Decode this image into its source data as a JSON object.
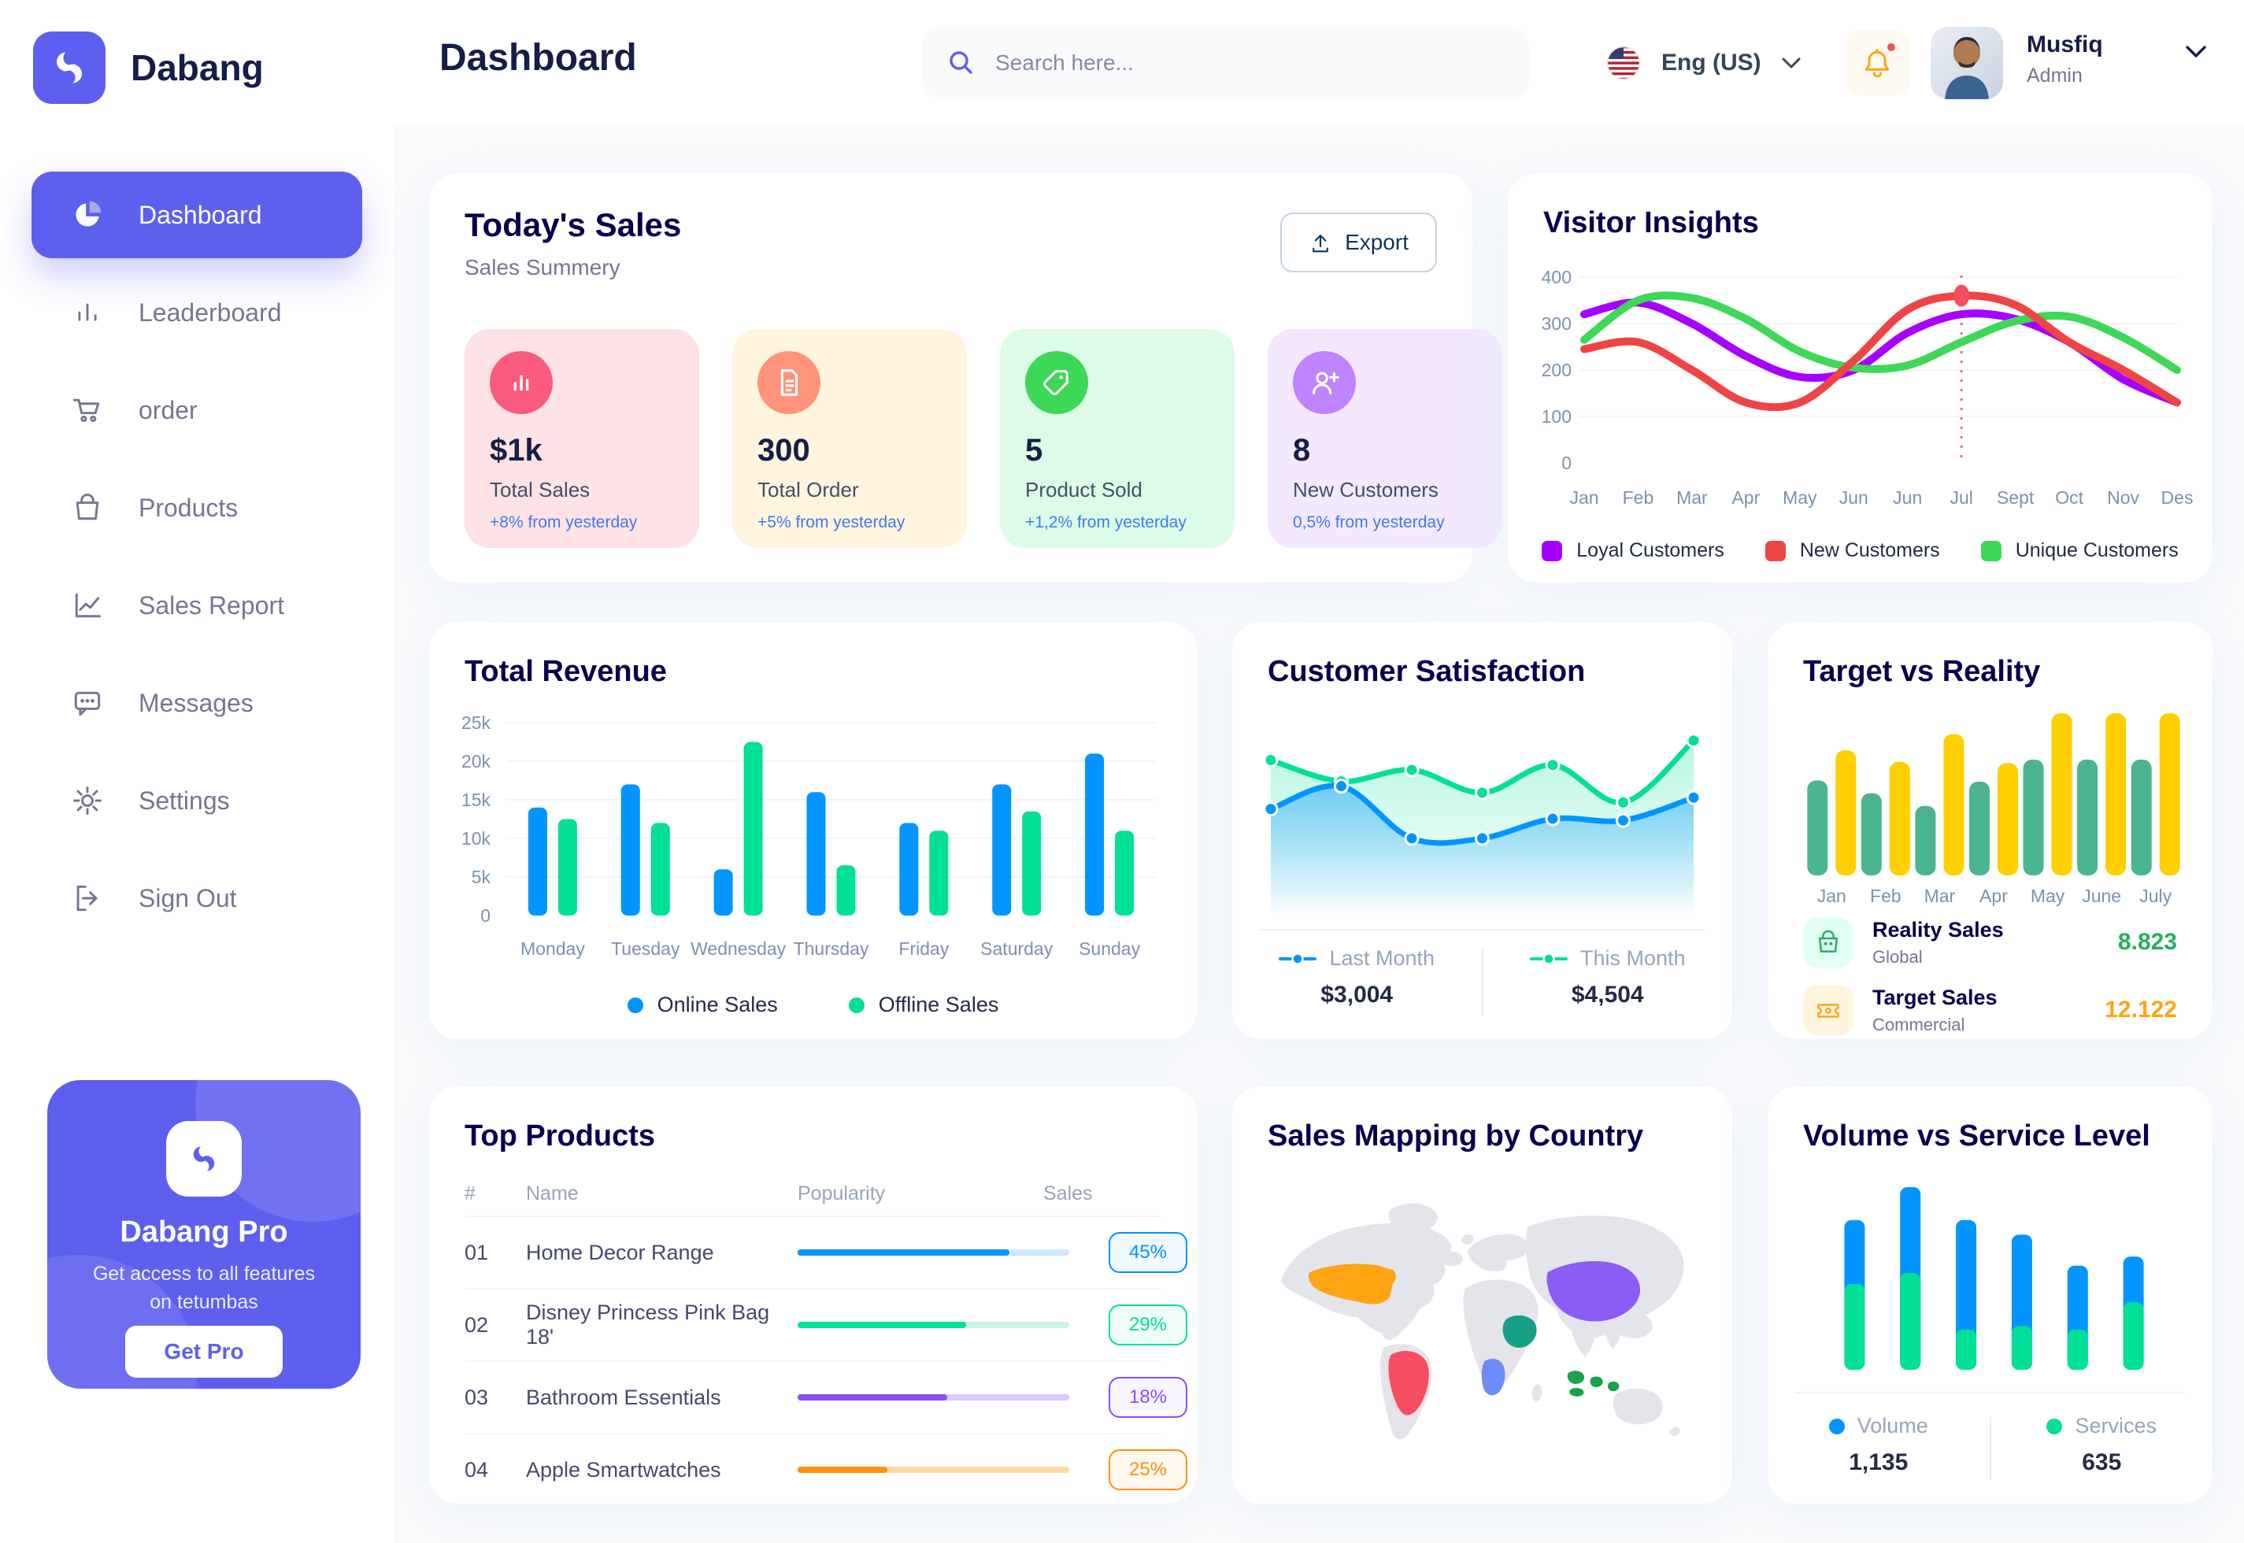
{
  "app": {
    "brand": "Dabang"
  },
  "header": {
    "page_title": "Dashboard",
    "search_placeholder": "Search here...",
    "language": "Eng (US)",
    "user": {
      "name": "Musfiq",
      "role": "Admin"
    }
  },
  "sidebar": {
    "items": [
      {
        "label": "Dashboard",
        "icon": "pie-chart-icon",
        "active": true
      },
      {
        "label": "Leaderboard",
        "icon": "bar-chart-icon",
        "active": false
      },
      {
        "label": "order",
        "icon": "cart-icon",
        "active": false
      },
      {
        "label": "Products",
        "icon": "bag-icon",
        "active": false
      },
      {
        "label": "Sales Report",
        "icon": "line-chart-icon",
        "active": false
      },
      {
        "label": "Messages",
        "icon": "message-icon",
        "active": false
      },
      {
        "label": "Settings",
        "icon": "gear-icon",
        "active": false
      },
      {
        "label": "Sign Out",
        "icon": "sign-out-icon",
        "active": false
      }
    ],
    "pro": {
      "title": "Dabang Pro",
      "description": "Get access to all features on tetumbas",
      "button_label": "Get Pro"
    }
  },
  "todays_sales": {
    "title": "Today's Sales",
    "subtitle": "Sales Summery",
    "export_label": "Export",
    "cards": [
      {
        "value": "$1k",
        "label": "Total Sales",
        "delta": "+8% from yesterday",
        "bg": "#FFE2E5",
        "icon_bg": "#FA5A7D",
        "icon": "sales-chart-icon"
      },
      {
        "value": "300",
        "label": "Total Order",
        "delta": "+5% from yesterday",
        "bg": "#FFF4DE",
        "icon_bg": "#FF947A",
        "icon": "order-doc-icon"
      },
      {
        "value": "5",
        "label": "Product Sold",
        "delta": "+1,2% from yesterday",
        "bg": "#DCFCE7",
        "icon_bg": "#3CD856",
        "icon": "tag-icon"
      },
      {
        "value": "8",
        "label": "New Customers",
        "delta": "0,5% from yesterday",
        "bg": "#F3E8FF",
        "icon_bg": "#BF83FF",
        "icon": "new-user-icon"
      }
    ]
  },
  "top_products": {
    "title": "Top Products",
    "headers": [
      "#",
      "Name",
      "Popularity",
      "Sales"
    ],
    "rows": [
      {
        "num": "01",
        "name": "Home Decor Range",
        "popularity": 78,
        "sales": "45%",
        "color": "#0095FF",
        "track": "#CDE7FF",
        "badge_bg": "#F0F9FF"
      },
      {
        "num": "02",
        "name": "Disney Princess Pink Bag 18'",
        "popularity": 62,
        "sales": "29%",
        "color": "#00E096",
        "track": "#C7F5E0",
        "badge_bg": "#F0FDF6"
      },
      {
        "num": "03",
        "name": "Bathroom Essentials",
        "popularity": 55,
        "sales": "18%",
        "color": "#884DFF",
        "track": "#DCCBFF",
        "badge_bg": "#F9F5FF"
      },
      {
        "num": "04",
        "name": "Apple Smartwatches",
        "popularity": 33,
        "sales": "25%",
        "color": "#FF8F0D",
        "track": "#FFD9A3",
        "badge_bg": "#FFF8EE"
      }
    ]
  },
  "chart_data": [
    {
      "id": "visitor_insights",
      "type": "line",
      "title": "Visitor Insights",
      "x": [
        "Jan",
        "Feb",
        "Mar",
        "Apr",
        "May",
        "Jun",
        "Jun",
        "Jul",
        "Sept",
        "Oct",
        "Nov",
        "Des"
      ],
      "ylim": [
        0,
        400
      ],
      "yticks": [
        0,
        100,
        200,
        300,
        400
      ],
      "grid": true,
      "legend_position": "bottom",
      "series": [
        {
          "name": "Loyal Customers",
          "color": "#A700FF",
          "values": [
            320,
            345,
            300,
            230,
            185,
            200,
            280,
            320,
            310,
            260,
            180,
            130
          ]
        },
        {
          "name": "New Customers",
          "color": "#EF4444",
          "values": [
            245,
            260,
            200,
            130,
            130,
            220,
            330,
            360,
            340,
            260,
            200,
            130
          ]
        },
        {
          "name": "Unique Customers",
          "color": "#3CD856",
          "values": [
            265,
            350,
            355,
            310,
            240,
            205,
            210,
            260,
            305,
            315,
            270,
            200
          ]
        }
      ],
      "marker": {
        "series": "New Customers",
        "x_index": 7,
        "value": 360
      }
    },
    {
      "id": "total_revenue",
      "type": "bar",
      "title": "Total Revenue",
      "categories": [
        "Monday",
        "Tuesday",
        "Wednesday",
        "Thursday",
        "Friday",
        "Saturday",
        "Sunday"
      ],
      "ylim": [
        0,
        25
      ],
      "yticks": [
        0,
        5,
        10,
        15,
        20,
        25
      ],
      "ytick_labels": [
        "0",
        "5k",
        "10k",
        "15k",
        "20k",
        "25k"
      ],
      "grid": true,
      "legend_position": "bottom",
      "series": [
        {
          "name": "Online Sales",
          "color": "#0095FF",
          "values": [
            14,
            17,
            6,
            16,
            12,
            17,
            21
          ]
        },
        {
          "name": "Offline Sales",
          "color": "#00E096",
          "values": [
            12.5,
            12,
            22.5,
            6.5,
            11,
            13.5,
            11
          ]
        }
      ]
    },
    {
      "id": "customer_satisfaction",
      "type": "area",
      "title": "Customer Satisfaction",
      "ylim": [
        0,
        100
      ],
      "legend_position": "bottom",
      "series": [
        {
          "name": "Last Month",
          "color": "#0095FF",
          "total": "$3,004",
          "values": [
            48,
            62,
            30,
            30,
            42,
            41,
            55
          ]
        },
        {
          "name": "This Month",
          "color": "#00E096",
          "total": "$4,504",
          "values": [
            78,
            65,
            72,
            58,
            75,
            52,
            90
          ]
        }
      ]
    },
    {
      "id": "target_vs_reality",
      "type": "bar",
      "title": "Target vs Reality",
      "categories": [
        "Jan",
        "Feb",
        "Mar",
        "Apr",
        "May",
        "June",
        "July"
      ],
      "ylim": [
        0,
        14
      ],
      "legend_position": "bottom",
      "series": [
        {
          "name": "Reality Sales",
          "color": "#4AB58E",
          "values": [
            8.2,
            7.1,
            6.0,
            8.1,
            10,
            10,
            10
          ]
        },
        {
          "name": "Target Sales",
          "color": "#FFCF00",
          "values": [
            10.8,
            9.8,
            12.2,
            9.7,
            14,
            14,
            14
          ]
        }
      ],
      "legend": [
        {
          "label": "Reality Sales",
          "sub": "Global",
          "value": "8.823",
          "value_color": "#27AE60",
          "icon_bg": "#E2FFF3",
          "icon": "bag-icon"
        },
        {
          "label": "Target Sales",
          "sub": "Commercial",
          "value": "12.122",
          "value_color": "#FFA412",
          "icon_bg": "#FFF4DE",
          "icon": "ticket-icon"
        }
      ]
    },
    {
      "id": "volume_vs_service",
      "type": "stacked-bar",
      "title": "Volume vs Service Level",
      "ylim": [
        0,
        100
      ],
      "legend_position": "bottom",
      "series": [
        {
          "name": "Volume",
          "color": "#0095FF",
          "total": "1,135",
          "values": [
            35,
            47,
            60,
            50,
            35,
            25
          ]
        },
        {
          "name": "Services",
          "color": "#00E096",
          "total": "635",
          "values": [
            47,
            53,
            22,
            24,
            22,
            37
          ]
        }
      ]
    },
    {
      "id": "sales_mapping",
      "type": "map",
      "title": "Sales Mapping by Country",
      "countries": [
        {
          "key": "usa",
          "name": "United States",
          "color": "#FFA412"
        },
        {
          "key": "brazil",
          "name": "Brazil",
          "color": "#F64E60"
        },
        {
          "key": "drcongo",
          "name": "DR Congo",
          "color": "#6C8CF8"
        },
        {
          "key": "saudi",
          "name": "Saudi Arabia",
          "color": "#16A085"
        },
        {
          "key": "china",
          "name": "China",
          "color": "#8B5CF6"
        },
        {
          "key": "indonesia",
          "name": "Indonesia",
          "color": "#16A34A"
        }
      ]
    }
  ]
}
